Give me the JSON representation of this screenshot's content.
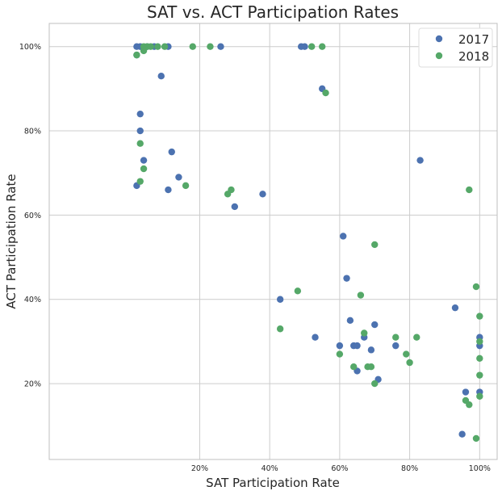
{
  "chart_data": {
    "type": "scatter",
    "title": "SAT vs. ACT Participation Rates",
    "xlabel": "SAT Participation Rate",
    "ylabel": "ACT Participation Rate",
    "xlim": [
      -0.23,
      1.05
    ],
    "ylim": [
      0.02,
      1.055
    ],
    "x_ticks": [
      {
        "value": 0.2,
        "label": "20%"
      },
      {
        "value": 0.4,
        "label": "40%"
      },
      {
        "value": 0.6,
        "label": "60%"
      },
      {
        "value": 0.8,
        "label": "80%"
      },
      {
        "value": 1.0,
        "label": "100%"
      }
    ],
    "y_ticks": [
      {
        "value": 0.2,
        "label": "20%"
      },
      {
        "value": 0.4,
        "label": "40%"
      },
      {
        "value": 0.6,
        "label": "60%"
      },
      {
        "value": 0.8,
        "label": "80%"
      },
      {
        "value": 1.0,
        "label": "100%"
      }
    ],
    "grid": true,
    "legend": "top-right",
    "series": [
      {
        "name": "2017",
        "color": "#4c72b0",
        "points": [
          [
            0.02,
            1.0
          ],
          [
            0.03,
            1.0
          ],
          [
            0.05,
            1.0
          ],
          [
            0.07,
            1.0
          ],
          [
            0.11,
            1.0
          ],
          [
            0.26,
            1.0
          ],
          [
            0.49,
            1.0
          ],
          [
            0.5,
            1.0
          ],
          [
            0.09,
            0.93
          ],
          [
            0.55,
            0.9
          ],
          [
            0.03,
            0.84
          ],
          [
            0.03,
            0.8
          ],
          [
            0.12,
            0.75
          ],
          [
            0.04,
            0.73
          ],
          [
            0.83,
            0.73
          ],
          [
            0.14,
            0.69
          ],
          [
            0.02,
            0.67
          ],
          [
            0.11,
            0.66
          ],
          [
            0.38,
            0.65
          ],
          [
            0.3,
            0.62
          ],
          [
            0.61,
            0.55
          ],
          [
            0.62,
            0.45
          ],
          [
            0.43,
            0.4
          ],
          [
            0.93,
            0.38
          ],
          [
            0.63,
            0.35
          ],
          [
            0.7,
            0.34
          ],
          [
            0.67,
            0.31
          ],
          [
            0.53,
            0.31
          ],
          [
            1.0,
            0.31
          ],
          [
            0.6,
            0.29
          ],
          [
            0.64,
            0.29
          ],
          [
            0.65,
            0.29
          ],
          [
            0.76,
            0.29
          ],
          [
            1.0,
            0.29
          ],
          [
            0.69,
            0.28
          ],
          [
            0.65,
            0.23
          ],
          [
            0.71,
            0.21
          ],
          [
            0.96,
            0.18
          ],
          [
            1.0,
            0.18
          ],
          [
            0.95,
            0.08
          ],
          [
            0.02,
            0.98
          ]
        ]
      },
      {
        "name": "2018",
        "color": "#55a868",
        "points": [
          [
            0.04,
            1.0
          ],
          [
            0.05,
            1.0
          ],
          [
            0.06,
            1.0
          ],
          [
            0.08,
            1.0
          ],
          [
            0.1,
            1.0
          ],
          [
            0.18,
            1.0
          ],
          [
            0.23,
            1.0
          ],
          [
            0.52,
            1.0
          ],
          [
            0.55,
            1.0
          ],
          [
            0.04,
            0.99
          ],
          [
            0.02,
            0.98
          ],
          [
            0.56,
            0.89
          ],
          [
            0.03,
            0.77
          ],
          [
            0.04,
            0.71
          ],
          [
            0.03,
            0.68
          ],
          [
            0.16,
            0.67
          ],
          [
            0.29,
            0.66
          ],
          [
            0.97,
            0.66
          ],
          [
            0.28,
            0.65
          ],
          [
            0.7,
            0.53
          ],
          [
            0.99,
            0.43
          ],
          [
            0.48,
            0.42
          ],
          [
            0.66,
            0.41
          ],
          [
            1.0,
            0.36
          ],
          [
            0.43,
            0.33
          ],
          [
            0.67,
            0.32
          ],
          [
            0.76,
            0.31
          ],
          [
            0.82,
            0.31
          ],
          [
            1.0,
            0.3
          ],
          [
            0.6,
            0.27
          ],
          [
            0.79,
            0.27
          ],
          [
            1.0,
            0.26
          ],
          [
            0.8,
            0.25
          ],
          [
            0.64,
            0.24
          ],
          [
            0.68,
            0.24
          ],
          [
            0.69,
            0.24
          ],
          [
            1.0,
            0.22
          ],
          [
            0.7,
            0.2
          ],
          [
            1.0,
            0.17
          ],
          [
            0.96,
            0.16
          ],
          [
            0.97,
            0.15
          ],
          [
            0.99,
            0.07
          ]
        ]
      }
    ]
  }
}
